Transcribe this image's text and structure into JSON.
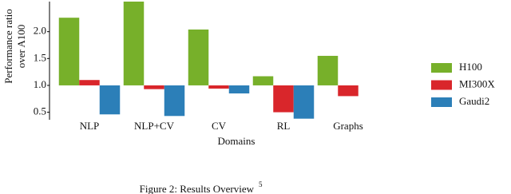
{
  "chart_data": {
    "type": "bar",
    "x_label": "Domains",
    "y_label": [
      "Performance ratio",
      "over A100"
    ],
    "caption": "Figure 2: Results Overview",
    "caption_note": "5",
    "categories": [
      "NLP",
      "NLP+CV",
      "CV",
      "RL",
      "Graphs"
    ],
    "baseline": 1,
    "series": [
      {
        "name": "H100",
        "color": "#77b02a",
        "values": [
          2.26,
          2.56,
          2.04,
          1.17,
          1.55
        ]
      },
      {
        "name": "MI300X",
        "color": "#d9262b",
        "values": [
          1.1,
          0.93,
          0.94,
          0.5,
          0.8
        ]
      },
      {
        "name": "Gaudi2",
        "color": "#2c7fb8",
        "values": [
          0.46,
          0.43,
          0.85,
          0.38,
          null
        ]
      }
    ],
    "ylim": [
      0.36,
      2.56
    ],
    "yticks": [
      0.5,
      {
        "value": 1,
        "label": "1.0"
      },
      1.5,
      {
        "value": 2,
        "label": "2.0"
      }
    ],
    "legend": "right"
  }
}
